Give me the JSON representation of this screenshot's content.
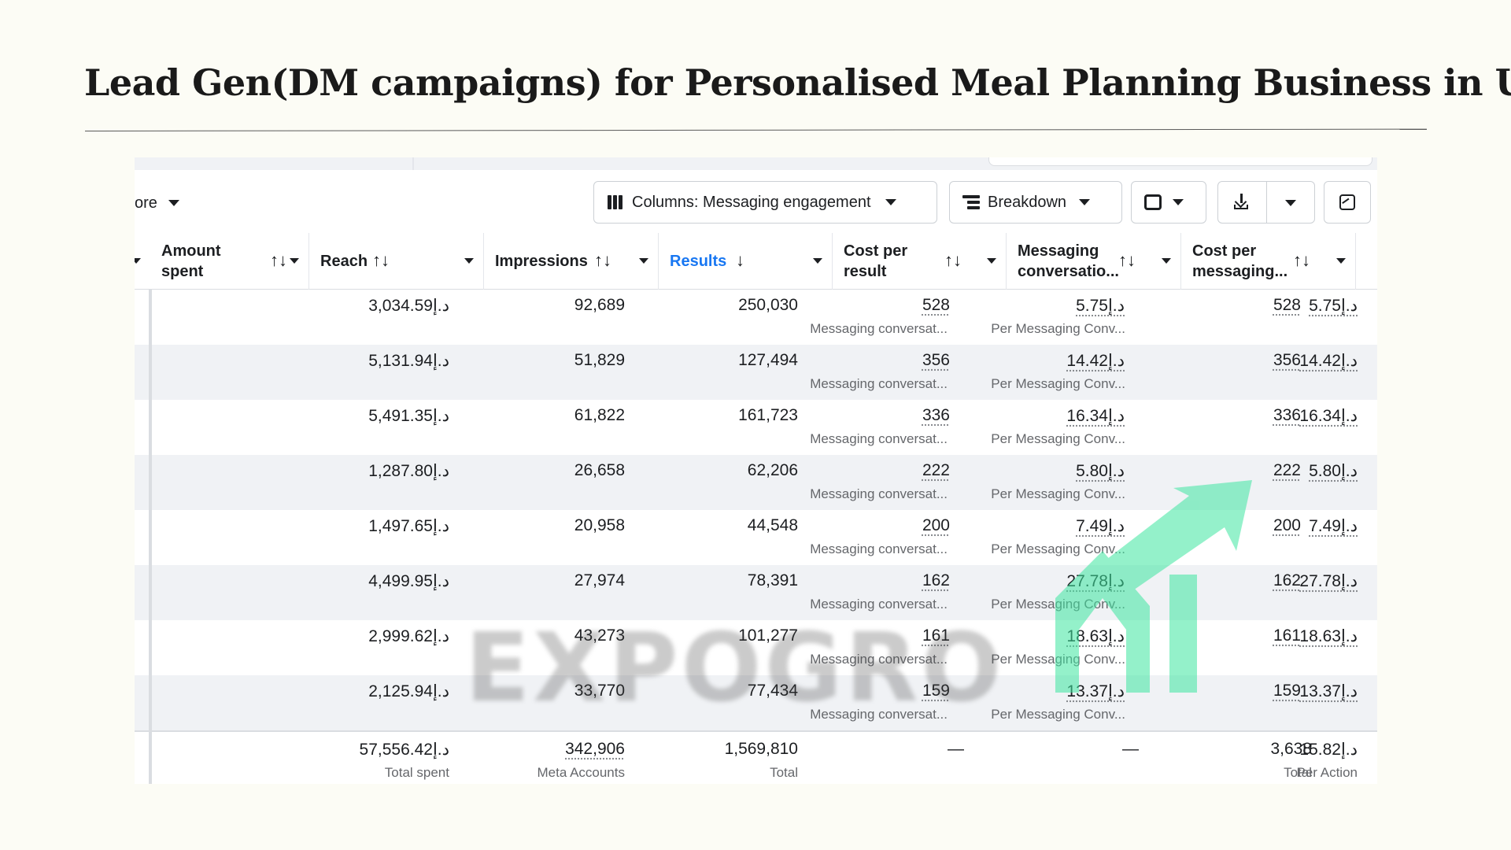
{
  "slide": {
    "title": "Lead Gen(DM campaigns) for Personalised Meal Planning Business in UAE"
  },
  "toolbar": {
    "more_label": "ore",
    "columns_label": "Columns: Messaging engagement",
    "breakdown_label": "Breakdown"
  },
  "watermark": "EXPOGRO",
  "colors": {
    "accent": "#1877f2",
    "watermark_logo": "#3ee6a0",
    "background": "#fcfcf5"
  },
  "icons": [
    "columns-icon",
    "breakdown-icon",
    "reports-icon",
    "download-icon",
    "chart-icon",
    "sort-icon",
    "dropdown-caret-icon"
  ],
  "table": {
    "headers": {
      "amount_spent": [
        "Amount",
        "spent"
      ],
      "reach": "Reach",
      "impressions": "Impressions",
      "results": "Results",
      "cost_per_result": [
        "Cost per",
        "result"
      ],
      "messaging_conversations": [
        "Messaging",
        "conversatio..."
      ],
      "cost_per_messaging": [
        "Cost per",
        "messaging..."
      ]
    },
    "sort_both": "↑↓",
    "sort_down": "↓",
    "result_sub": "Messaging conversat...",
    "cost_sub": "Per Messaging Conv...",
    "rows": [
      {
        "amount": "3,034.59د.إ",
        "reach": "92,689",
        "impressions": "250,030",
        "results": "528",
        "cost_per_result": "5.75د.إ",
        "messaging": "528",
        "cost_per_messaging": "5.75د.إ"
      },
      {
        "amount": "5,131.94د.إ",
        "reach": "51,829",
        "impressions": "127,494",
        "results": "356",
        "cost_per_result": "14.42د.إ",
        "messaging": "356",
        "cost_per_messaging": "14.42د.إ"
      },
      {
        "amount": "5,491.35د.إ",
        "reach": "61,822",
        "impressions": "161,723",
        "results": "336",
        "cost_per_result": "16.34د.إ",
        "messaging": "336",
        "cost_per_messaging": "16.34د.إ"
      },
      {
        "amount": "1,287.80د.إ",
        "reach": "26,658",
        "impressions": "62,206",
        "results": "222",
        "cost_per_result": "5.80د.إ",
        "messaging": "222",
        "cost_per_messaging": "5.80د.إ"
      },
      {
        "amount": "1,497.65د.إ",
        "reach": "20,958",
        "impressions": "44,548",
        "results": "200",
        "cost_per_result": "7.49د.إ",
        "messaging": "200",
        "cost_per_messaging": "7.49د.إ"
      },
      {
        "amount": "4,499.95د.إ",
        "reach": "27,974",
        "impressions": "78,391",
        "results": "162",
        "cost_per_result": "27.78د.إ",
        "messaging": "162",
        "cost_per_messaging": "27.78د.إ"
      },
      {
        "amount": "2,999.62د.إ",
        "reach": "43,273",
        "impressions": "101,277",
        "results": "161",
        "cost_per_result": "18.63د.إ",
        "messaging": "161",
        "cost_per_messaging": "18.63د.إ"
      },
      {
        "amount": "2,125.94د.إ",
        "reach": "33,770",
        "impressions": "77,434",
        "results": "159",
        "cost_per_result": "13.37د.إ",
        "messaging": "159",
        "cost_per_messaging": "13.37د.إ"
      }
    ],
    "totals": {
      "amount": "57,556.42د.إ",
      "amount_sub": "Total spent",
      "reach": "342,906",
      "reach_sub": "Meta Accounts",
      "impressions": "1,569,810",
      "impressions_sub": "Total",
      "results": "—",
      "cost_per_result": "—",
      "messaging": "3,638",
      "messaging_sub": "Total",
      "cost_per_messaging": "15.82د.إ",
      "cost_per_messaging_sub": "Per Action"
    }
  }
}
